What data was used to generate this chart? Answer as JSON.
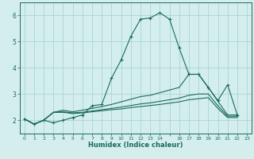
{
  "title": "",
  "xlabel": "Humidex (Indice chaleur)",
  "ylabel": "",
  "bg_color": "#d4eeee",
  "grid_color": "#aad4d4",
  "line_color": "#1a6b5a",
  "xlim": [
    -0.5,
    23.5
  ],
  "ylim": [
    1.5,
    6.5
  ],
  "yticks": [
    2,
    3,
    4,
    5,
    6
  ],
  "lines": [
    {
      "x": [
        0,
        1,
        2,
        3,
        4,
        5,
        6,
        7,
        8,
        9,
        10,
        11,
        12,
        13,
        14,
        15,
        16,
        17,
        18,
        19,
        20,
        21,
        22
      ],
      "y": [
        2.05,
        1.85,
        2.0,
        1.9,
        2.0,
        2.1,
        2.2,
        2.55,
        2.6,
        3.6,
        4.3,
        5.2,
        5.85,
        5.9,
        6.1,
        5.85,
        4.75,
        3.75,
        3.75,
        3.25,
        2.75,
        3.35,
        2.2
      ],
      "marker": "+"
    },
    {
      "x": [
        0,
        1,
        2,
        3,
        4,
        5,
        6,
        7,
        8,
        9,
        10,
        11,
        12,
        13,
        14,
        15,
        16,
        17,
        18,
        19,
        20,
        21,
        22
      ],
      "y": [
        2.05,
        1.85,
        2.0,
        2.3,
        2.38,
        2.32,
        2.38,
        2.45,
        2.52,
        2.6,
        2.7,
        2.8,
        2.9,
        2.95,
        3.05,
        3.15,
        3.25,
        3.75,
        3.75,
        3.25,
        2.72,
        2.2,
        2.2
      ],
      "marker": null
    },
    {
      "x": [
        0,
        1,
        2,
        3,
        4,
        5,
        6,
        7,
        8,
        9,
        10,
        11,
        12,
        13,
        14,
        15,
        16,
        17,
        18,
        19,
        20,
        21,
        22
      ],
      "y": [
        2.05,
        1.85,
        2.0,
        2.3,
        2.32,
        2.28,
        2.3,
        2.35,
        2.4,
        2.45,
        2.5,
        2.56,
        2.62,
        2.66,
        2.72,
        2.78,
        2.84,
        2.95,
        3.0,
        3.0,
        2.55,
        2.15,
        2.15
      ],
      "marker": null
    },
    {
      "x": [
        0,
        1,
        2,
        3,
        4,
        5,
        6,
        7,
        8,
        9,
        10,
        11,
        12,
        13,
        14,
        15,
        16,
        17,
        18,
        19,
        20,
        21,
        22
      ],
      "y": [
        2.05,
        1.85,
        2.0,
        2.3,
        2.3,
        2.25,
        2.28,
        2.32,
        2.36,
        2.4,
        2.43,
        2.48,
        2.52,
        2.56,
        2.6,
        2.65,
        2.7,
        2.78,
        2.82,
        2.86,
        2.45,
        2.1,
        2.1
      ],
      "marker": null
    }
  ]
}
